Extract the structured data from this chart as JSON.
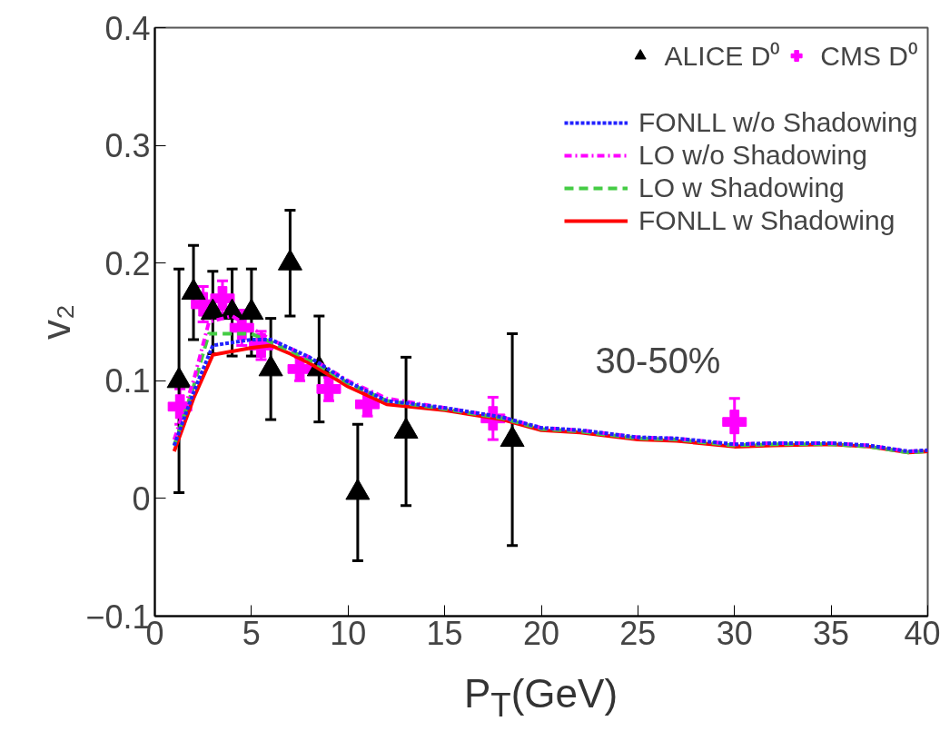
{
  "chart_data": {
    "type": "line",
    "xlabel": "P$_{T}$(GeV)",
    "ylabel": "v₂",
    "xlim": [
      0,
      40
    ],
    "ylim": [
      -0.1,
      0.4
    ],
    "xticks": [
      0,
      5,
      10,
      15,
      20,
      25,
      30,
      35,
      40
    ],
    "yticks": [
      {
        "value": -0.1,
        "label": "−0.1"
      },
      0,
      0.1,
      0.2,
      0.3,
      0.4
    ],
    "grid": false,
    "legend": "top right",
    "annotations": [
      "30-50%"
    ],
    "series": [
      {
        "name": "ALICE D⁰",
        "type": "scatter",
        "marker": "triangle",
        "color": "#000000",
        "x": [
          1.25,
          2,
          3,
          4,
          5,
          6,
          7,
          8.5,
          10.5,
          13,
          18.5
        ],
        "values": [
          0.1,
          0.175,
          0.158,
          0.158,
          0.158,
          0.11,
          0.2,
          0.11,
          0.005,
          0.057,
          0.05
        ],
        "errors": [
          0.095,
          0.04,
          0.035,
          0.037,
          0.037,
          0.043,
          0.045,
          0.045,
          0.058,
          0.063,
          0.09
        ]
      },
      {
        "name": "CMS D⁰",
        "type": "scatter",
        "marker": "cross",
        "color": "#ff00ff",
        "x": [
          1.3,
          2.5,
          3.5,
          4.5,
          5.5,
          7.5,
          9,
          11,
          17.5,
          30
        ],
        "values": [
          0.078,
          0.165,
          0.17,
          0.145,
          0.13,
          0.11,
          0.093,
          0.08,
          0.068,
          0.065
        ],
        "errors": [
          0.015,
          0.015,
          0.015,
          0.015,
          0.012,
          0.01,
          0.01,
          0.01,
          0.018,
          0.02
        ]
      },
      {
        "name": "LO w/o Shadowing",
        "line_style": "dashdot",
        "color": "#ff00ff",
        "x": [
          1,
          2,
          2.8,
          4,
          5,
          6,
          8,
          10,
          12,
          15,
          18,
          20,
          22,
          25,
          27,
          30,
          32,
          35,
          37,
          39,
          40
        ],
        "values": [
          0.05,
          0.1,
          0.15,
          0.155,
          0.145,
          0.135,
          0.12,
          0.1,
          0.085,
          0.077,
          0.069,
          0.06,
          0.058,
          0.052,
          0.051,
          0.046,
          0.047,
          0.047,
          0.045,
          0.04,
          0.041
        ]
      },
      {
        "name": "LO w Shadowing",
        "line_style": "dashed",
        "color": "#44cc44",
        "x": [
          1,
          2,
          2.8,
          4,
          5,
          6,
          8,
          10,
          12,
          15,
          18,
          20,
          22,
          25,
          27,
          30,
          32,
          35,
          37,
          39,
          40
        ],
        "values": [
          0.045,
          0.095,
          0.14,
          0.14,
          0.14,
          0.133,
          0.118,
          0.098,
          0.083,
          0.076,
          0.068,
          0.059,
          0.057,
          0.051,
          0.05,
          0.045,
          0.046,
          0.046,
          0.044,
          0.039,
          0.04
        ]
      },
      {
        "name": "FONLL w/o Shadowing",
        "line_style": "dotted",
        "color": "#2222ff",
        "x": [
          1,
          2,
          3,
          5,
          6,
          8,
          10,
          12,
          15,
          18,
          20,
          22,
          25,
          27,
          30,
          32,
          35,
          37,
          39,
          40
        ],
        "values": [
          0.045,
          0.09,
          0.13,
          0.135,
          0.135,
          0.12,
          0.099,
          0.083,
          0.077,
          0.069,
          0.06,
          0.058,
          0.052,
          0.051,
          0.046,
          0.047,
          0.047,
          0.045,
          0.04,
          0.041
        ]
      },
      {
        "name": "FONLL w Shadowing",
        "line_style": "solid",
        "color": "#ff0000",
        "x": [
          1,
          2,
          3,
          5,
          6,
          7,
          8,
          10,
          12,
          15,
          18,
          20,
          22,
          25,
          27,
          30,
          32,
          35,
          37,
          39,
          40
        ],
        "values": [
          0.04,
          0.085,
          0.122,
          0.128,
          0.13,
          0.123,
          0.115,
          0.095,
          0.08,
          0.075,
          0.067,
          0.058,
          0.056,
          0.05,
          0.049,
          0.044,
          0.045,
          0.046,
          0.044,
          0.039,
          0.04
        ]
      }
    ]
  }
}
